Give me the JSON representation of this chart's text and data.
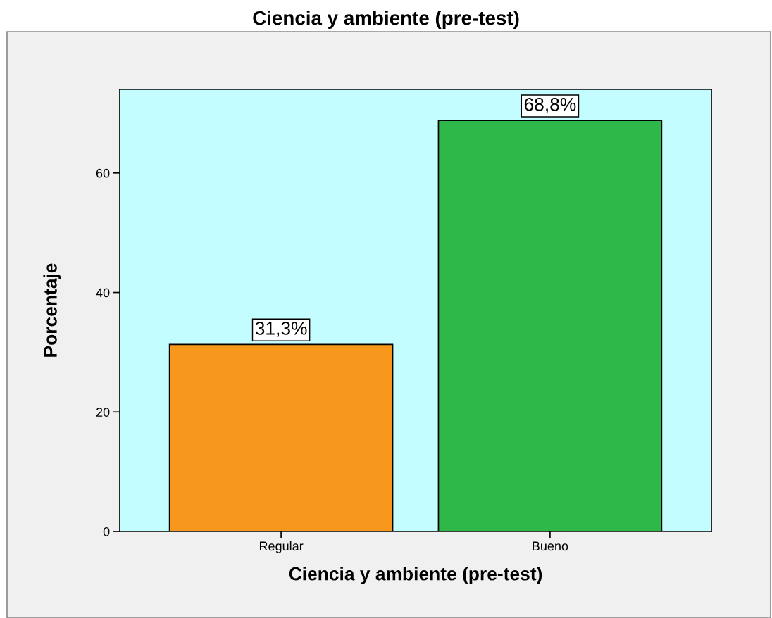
{
  "chart_data": {
    "type": "bar",
    "title": "Ciencia y ambiente (pre-test)",
    "xlabel": "Ciencia y ambiente (pre-test)",
    "ylabel": "Porcentaje",
    "categories": [
      "Regular",
      "Bueno"
    ],
    "values": [
      31.3,
      68.8
    ],
    "colors": [
      "#f7981d",
      "#2eb84a"
    ],
    "value_labels": [
      "31,3%",
      "68,8%"
    ],
    "ylim": [
      0,
      74
    ],
    "yticks": [
      0,
      20,
      40,
      60
    ]
  }
}
